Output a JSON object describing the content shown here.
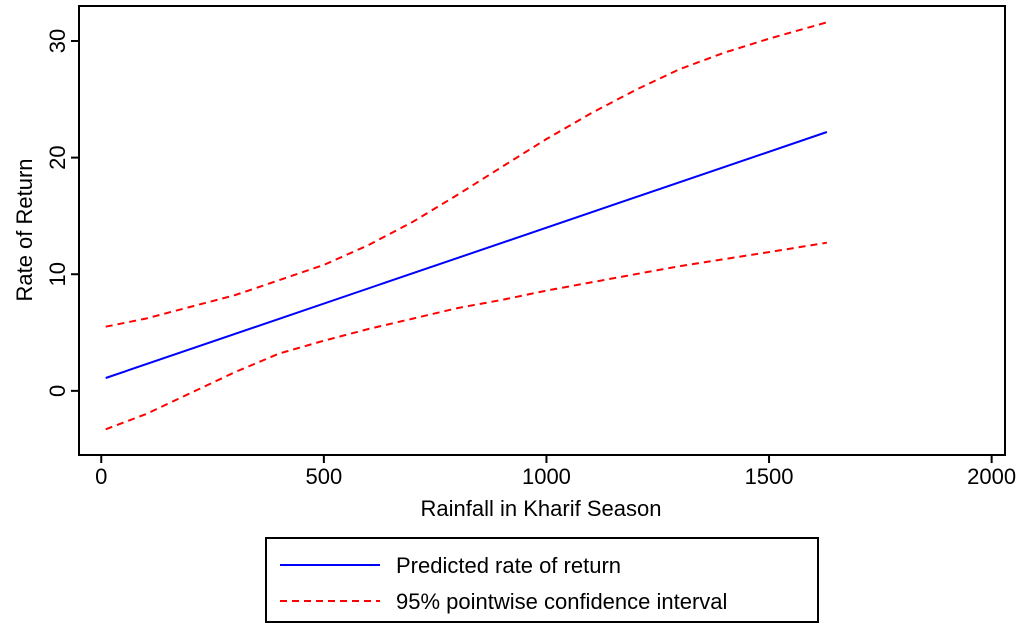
{
  "chart_data": {
    "type": "line",
    "title": "",
    "xlabel": "Rainfall in Kharif Season",
    "ylabel": "Rate of Return",
    "xlim": [
      -50,
      2030
    ],
    "ylim": [
      -5.5,
      33
    ],
    "xticks": [
      0,
      500,
      1000,
      1500,
      2000
    ],
    "yticks": [
      0,
      10,
      20,
      30
    ],
    "grid": false,
    "legend_position": "bottom",
    "series": [
      {
        "name": "Predicted rate of return",
        "color": "#0000ff",
        "style": "solid",
        "x": [
          10,
          1630
        ],
        "y": [
          1.1,
          22.2
        ]
      },
      {
        "name": "95% pointwise confidence interval",
        "color": "#ff0000",
        "style": "dashed",
        "x": [
          10,
          100,
          200,
          300,
          400,
          500,
          600,
          700,
          800,
          900,
          1000,
          1100,
          1200,
          1300,
          1400,
          1500,
          1630
        ],
        "y": [
          5.5,
          6.2,
          7.2,
          8.2,
          9.5,
          10.8,
          12.5,
          14.5,
          16.8,
          19.2,
          21.6,
          23.8,
          25.8,
          27.6,
          29.0,
          30.2,
          31.6
        ]
      },
      {
        "name": "",
        "color": "#ff0000",
        "style": "dashed",
        "x": [
          10,
          100,
          200,
          300,
          400,
          500,
          600,
          700,
          800,
          900,
          1000,
          1100,
          1200,
          1300,
          1400,
          1500,
          1630
        ],
        "y": [
          -3.3,
          -2.0,
          -0.2,
          1.6,
          3.2,
          4.3,
          5.3,
          6.2,
          7.1,
          7.8,
          8.6,
          9.3,
          10.0,
          10.7,
          11.3,
          11.9,
          12.7
        ]
      }
    ],
    "legend": [
      {
        "label": "Predicted rate of return",
        "color": "#0000ff",
        "style": "solid"
      },
      {
        "label": "95% pointwise confidence interval",
        "color": "#ff0000",
        "style": "dashed"
      }
    ]
  }
}
